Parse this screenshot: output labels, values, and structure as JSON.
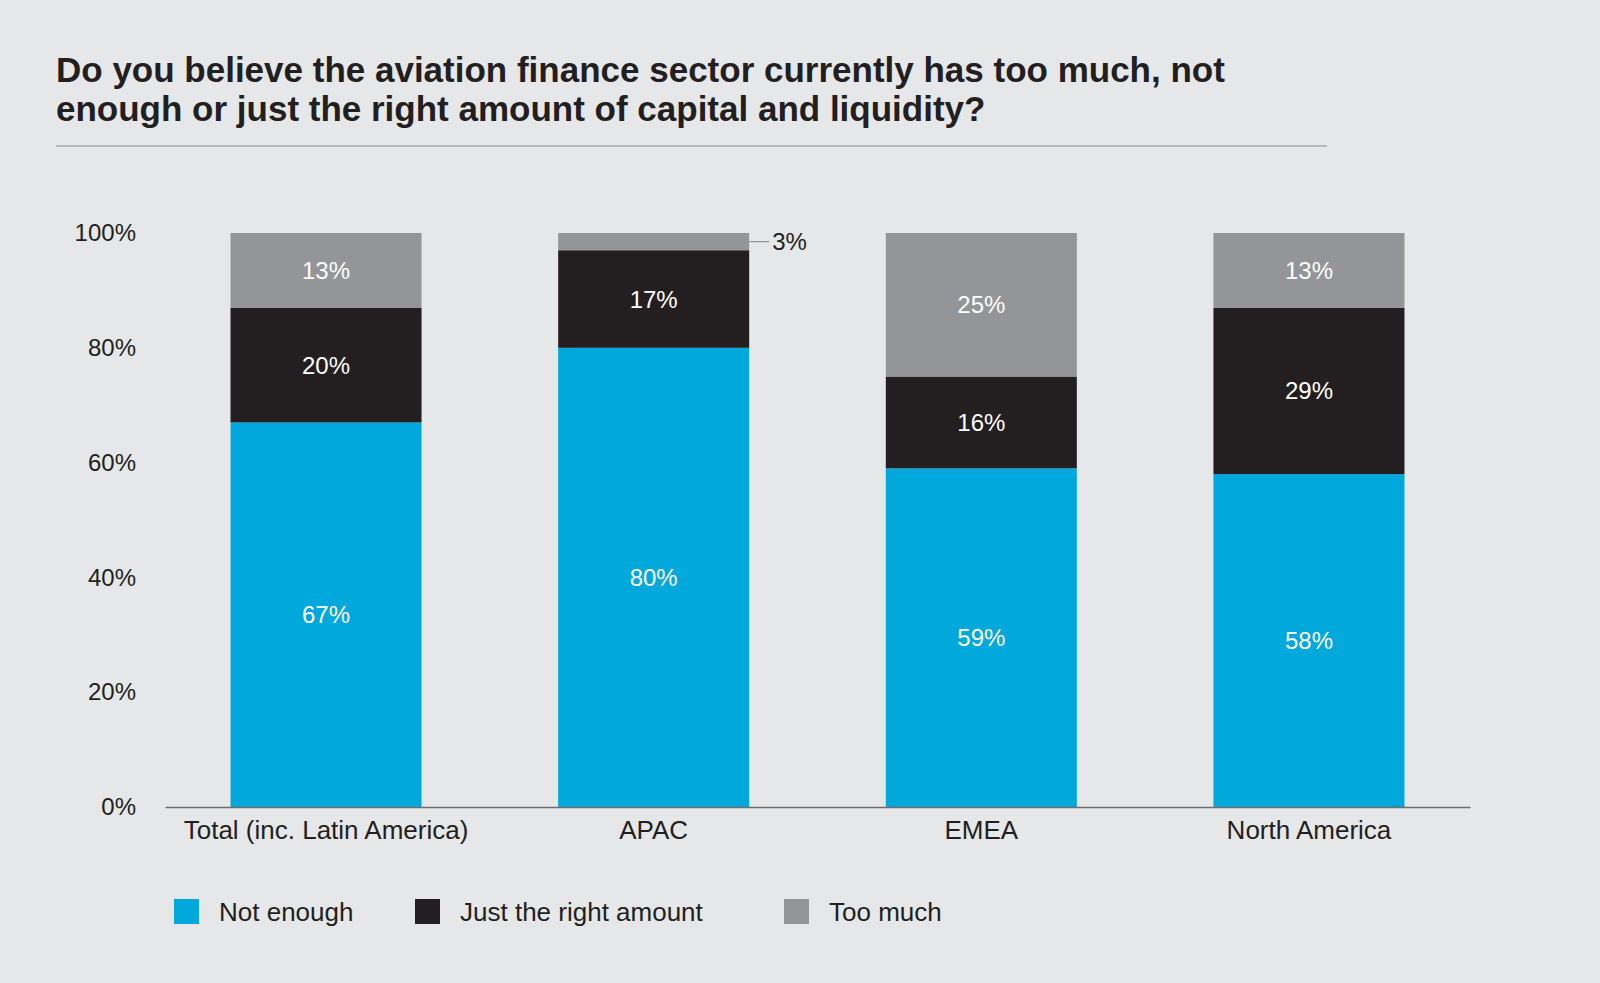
{
  "chart_data": {
    "type": "bar",
    "title": "Do you believe the aviation finance sector currently has too much, not enough or just the right amount of capital and liquidity?",
    "categories": [
      "Total (inc. Latin America)",
      "APAC",
      "EMEA",
      "North America"
    ],
    "series": [
      {
        "name": "Not enough",
        "color": "#00a8db",
        "values": [
          67,
          80,
          59,
          58
        ],
        "value_labels": [
          "67%",
          "80%",
          "59%",
          "58%"
        ]
      },
      {
        "name": "Just the right amount",
        "color": "#231f20",
        "values": [
          20,
          17,
          16,
          29
        ],
        "value_labels": [
          "20%",
          "17%",
          "16%",
          "29%"
        ]
      },
      {
        "name": "Too much",
        "color": "#939598",
        "values": [
          13,
          3,
          25,
          13
        ],
        "value_labels": [
          "13%",
          "3%",
          "25%",
          "13%"
        ]
      }
    ],
    "ylim": [
      0,
      100
    ],
    "yticks": [
      {
        "value": 0,
        "label": "0%"
      },
      {
        "value": 20,
        "label": "20%"
      },
      {
        "value": 40,
        "label": "40%"
      },
      {
        "value": 60,
        "label": "60%"
      },
      {
        "value": 80,
        "label": "80%"
      },
      {
        "value": 100,
        "label": "100%"
      }
    ],
    "stacked": true,
    "data_labels": true,
    "grid": false,
    "legend": "bottom-left"
  }
}
